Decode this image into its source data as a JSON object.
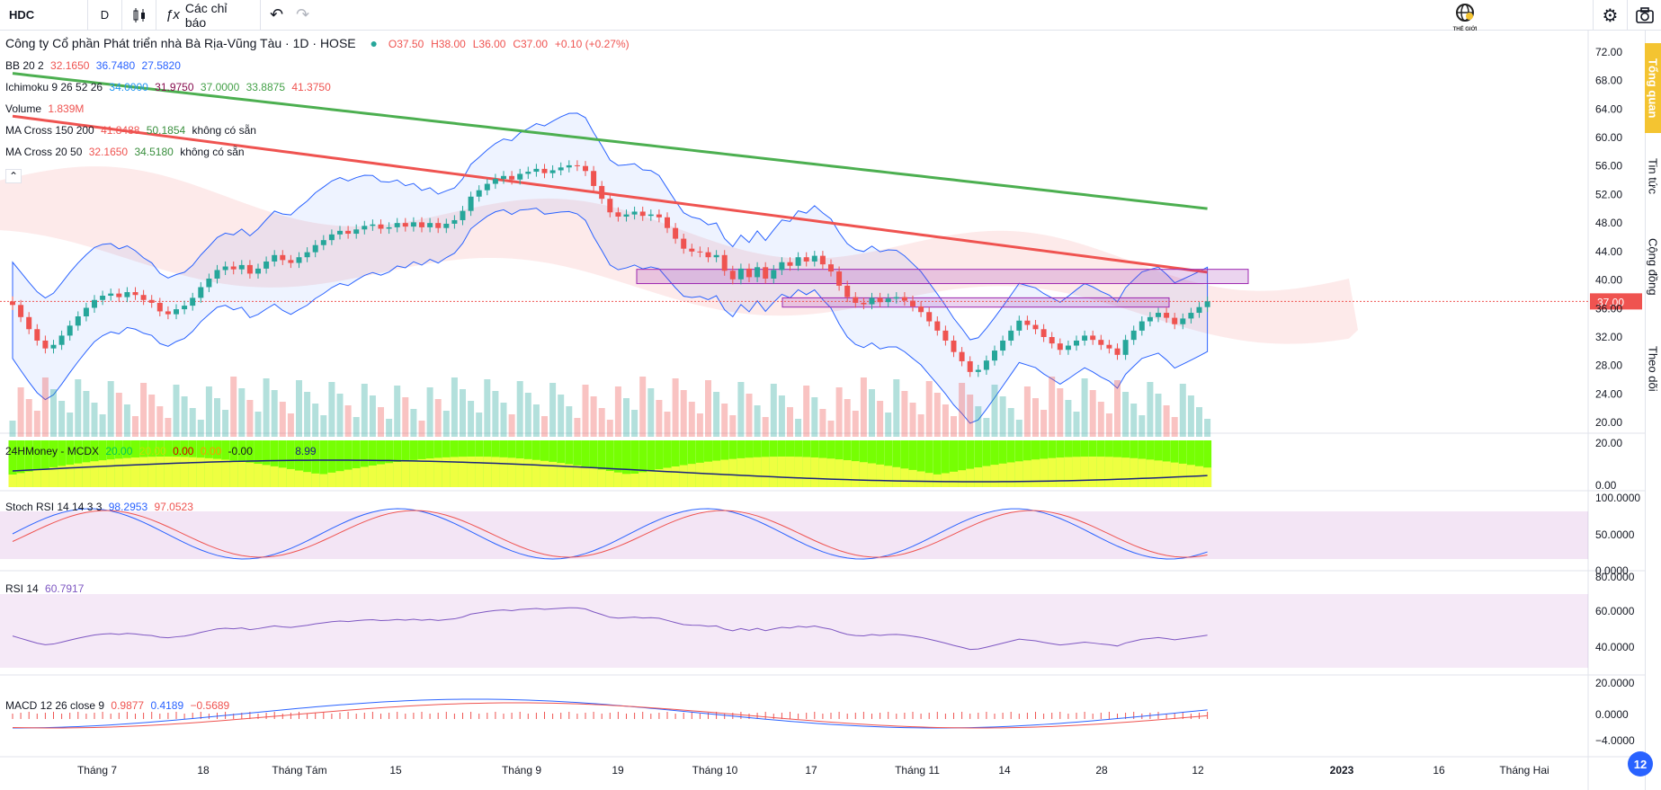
{
  "toolbar": {
    "symbol": "HDC",
    "interval": "D",
    "indicators_label": "Các chỉ báo",
    "logo_text": "THẾ GIỚI"
  },
  "side_tabs": [
    "Tổng quan",
    "Tin tức",
    "Cộng đồng",
    "Theo dõi"
  ],
  "header": {
    "company": "Công ty Cổ phần Phát triển nhà Bà Rịa-Vũng Tàu · 1D · HOSE",
    "open": "O37.50",
    "high": "H38.00",
    "low": "L36.00",
    "close": "C37.00",
    "change": "+0.10 (+0.27%)"
  },
  "legends": {
    "bb": {
      "name": "BB 20 2",
      "v1": "32.1650",
      "v2": "36.7480",
      "v3": "27.5820"
    },
    "ichimoku": {
      "name": "Ichimoku 9 26 52 26",
      "v1": "34.0000",
      "v2": "31.9750",
      "v3": "37.0000",
      "v4": "33.8875",
      "v5": "41.3750"
    },
    "volume": {
      "name": "Volume",
      "v1": "1.839M"
    },
    "ma_long": {
      "name": "MA Cross 150 200",
      "v1": "41.8488",
      "v2": "50.1854",
      "v3": "không có sẵn"
    },
    "ma_short": {
      "name": "MA Cross 20 50",
      "v1": "32.1650",
      "v2": "34.5180",
      "v3": "không có sẵn"
    },
    "mcdx": {
      "name": "24HMoney - MCDX",
      "v1": "20.00",
      "v2": "20.00",
      "v3": "0.00",
      "v4": "0.00",
      "v5": "-0.00",
      "v6": "8.99"
    },
    "stoch": {
      "name": "Stoch RSI 14 14 3 3",
      "v1": "98.2953",
      "v2": "97.0523"
    },
    "rsi": {
      "name": "RSI 14",
      "v1": "60.7917"
    },
    "macd": {
      "name": "MACD 12 26 close 9",
      "v1": "0.9877",
      "v2": "0.4189",
      "v3": "−0.5689"
    }
  },
  "price_axis": [
    "72.00",
    "68.00",
    "64.00",
    "60.00",
    "56.00",
    "52.00",
    "48.00",
    "44.00",
    "40.00",
    "36.00",
    "32.00",
    "28.00",
    "24.00",
    "20.00"
  ],
  "last_price_label": "37.00",
  "mcdx_axis": [
    "20.00",
    "0.00"
  ],
  "stoch_axis": [
    "100.0000",
    "50.0000",
    "0.0000"
  ],
  "rsi_axis": [
    "80.0000",
    "60.0000",
    "40.0000",
    "20.0000"
  ],
  "macd_axis": [
    "0.0000",
    "−4.0000"
  ],
  "time_axis": [
    "Tháng 7",
    "18",
    "Tháng Tám",
    "15",
    "Tháng 9",
    "19",
    "Tháng 10",
    "17",
    "Tháng 11",
    "14",
    "28",
    "12",
    "2023",
    "16",
    "Tháng Hai"
  ],
  "notification_count": "12",
  "colors": {
    "up": "#26a69a",
    "down": "#ef5350",
    "ma150": "#ef5350",
    "ma200": "#4caf50",
    "bb": "#2962ff"
  },
  "chart_data": {
    "type": "candlestick",
    "y_range": [
      20,
      72
    ],
    "close": [
      36.5,
      34.8,
      33.1,
      31.5,
      30.4,
      30.9,
      32.2,
      33.6,
      34.9,
      36.1,
      37.2,
      37.8,
      38.1,
      37.6,
      38.3,
      37.9,
      37.2,
      36.8,
      35.6,
      35.2,
      35.9,
      36.4,
      37.5,
      39.0,
      40.2,
      41.4,
      41.9,
      41.5,
      42.1,
      40.9,
      41.6,
      42.6,
      43.5,
      42.8,
      42.4,
      43.2,
      43.9,
      44.9,
      45.6,
      46.4,
      46.9,
      46.5,
      47.1,
      47.6,
      47.8,
      47.2,
      47.4,
      48.0,
      47.5,
      48.1,
      47.4,
      48.0,
      47.3,
      47.9,
      48.4,
      49.7,
      51.7,
      52.6,
      53.5,
      54.2,
      54.6,
      54.1,
      54.9,
      55.2,
      55.6,
      55.0,
      55.4,
      55.8,
      56.1,
      56.0,
      55.3,
      53.2,
      51.4,
      49.5,
      48.9,
      49.2,
      49.6,
      49.0,
      49.2,
      48.8,
      47.3,
      45.8,
      44.4,
      44.0,
      43.9,
      43.2,
      43.5,
      41.3,
      40.1,
      41.6,
      40.4,
      41.8,
      40.2,
      41.4,
      42.5,
      42.0,
      43.2,
      42.6,
      43.4,
      42.2,
      41.2,
      39.2,
      37.6,
      36.8,
      36.6,
      37.5,
      36.9,
      37.4,
      37.6,
      37.1,
      36.3,
      35.5,
      34.2,
      32.9,
      31.5,
      29.9,
      28.6,
      27.1,
      27.4,
      28.7,
      30.1,
      31.5,
      32.9,
      34.3,
      33.7,
      33.1,
      32.0,
      31.1,
      30.2,
      30.8,
      31.5,
      32.2,
      31.6,
      30.9,
      30.4,
      29.5,
      31.6,
      32.9,
      34.2,
      34.8,
      35.4,
      34.7,
      33.8,
      34.6,
      35.4,
      36.2,
      37.0
    ]
  }
}
